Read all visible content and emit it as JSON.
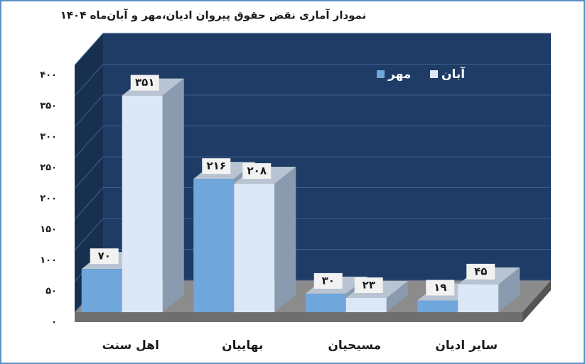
{
  "chart_data": {
    "type": "bar3d",
    "title": "نمودار آماری نقض حقوق پیروان ادیان،مهر و آبان‌ماه ۱۴۰۴",
    "categories": [
      "اهل سنت",
      "بهاییان",
      "مسیحیان",
      "سایر ادیان"
    ],
    "series": [
      {
        "name": "مهر",
        "color": "#6fa6dc",
        "values": [
          70,
          216,
          30,
          19
        ],
        "value_labels": [
          "۷۰",
          "۲۱۶",
          "۳۰",
          "۱۹"
        ]
      },
      {
        "name": "آبان",
        "color": "#dce8f6",
        "values": [
          351,
          208,
          23,
          45
        ],
        "value_labels": [
          "۳۵۱",
          "۲۰۸",
          "۲۳",
          "۴۵"
        ]
      }
    ],
    "ylim": [
      0,
      400
    ],
    "yticks": [
      {
        "value": 0,
        "label": "۰"
      },
      {
        "value": 50,
        "label": "۵۰"
      },
      {
        "value": 100,
        "label": "۱۰۰"
      },
      {
        "value": 150,
        "label": "۱۵۰"
      },
      {
        "value": 200,
        "label": "۲۰۰"
      },
      {
        "value": 250,
        "label": "۲۵۰"
      },
      {
        "value": 300,
        "label": "۳۰۰"
      },
      {
        "value": 350,
        "label": "۳۵۰"
      },
      {
        "value": 400,
        "label": "۴۰۰"
      }
    ],
    "grid": true,
    "wall_color": "#1f3c66"
  }
}
